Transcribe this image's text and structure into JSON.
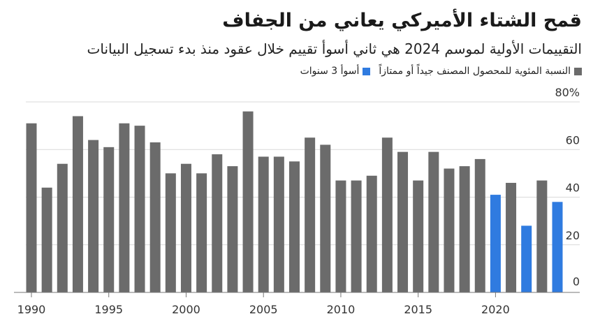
{
  "title": "قمح الشتاء الأميركي يعاني من الجفاف",
  "subtitle": "التقييمات الأولية لموسم 2024 هي ثاني أسوأ تقييم خلال عقود منذ بدء تسجيل البيانات",
  "legend": [
    {
      "label": "النسبة المئوية للمحصول المصنف جيداً أو ممتازاً",
      "color": "#6b6b6b"
    },
    {
      "label": "أسوأ 3 سنوات",
      "color": "#2f7be0"
    }
  ],
  "chart_data": {
    "type": "bar",
    "title": "",
    "xlabel": "",
    "ylabel": "",
    "unit": "%",
    "x": [
      1990,
      1991,
      1992,
      1993,
      1994,
      1995,
      1996,
      1997,
      1998,
      1999,
      2000,
      2001,
      2002,
      2003,
      2004,
      2005,
      2006,
      2007,
      2008,
      2009,
      2010,
      2011,
      2012,
      2013,
      2014,
      2015,
      2016,
      2017,
      2018,
      2019,
      2020,
      2021,
      2022,
      2023,
      2024
    ],
    "values": [
      71,
      44,
      54,
      74,
      64,
      61,
      71,
      70,
      63,
      50,
      54,
      50,
      58,
      53,
      76,
      57,
      57,
      55,
      65,
      62,
      47,
      47,
      49,
      65,
      59,
      47,
      59,
      52,
      53,
      56,
      41,
      46,
      28,
      47,
      38
    ],
    "highlight": [
      2020,
      2022,
      2024
    ],
    "colors": {
      "normal": "#6b6b6b",
      "highlight": "#2f7be0"
    },
    "ylim": [
      0,
      80
    ],
    "yticks": [
      0,
      20,
      40,
      60,
      80
    ],
    "ytick_labels": [
      "0",
      "20",
      "40",
      "60",
      "80%"
    ],
    "xticks": [
      1990,
      1995,
      2000,
      2005,
      2010,
      2015,
      2020
    ],
    "xtick_labels": [
      "1990",
      "1995",
      "2000",
      "2005",
      "2010",
      "2015",
      "2020"
    ],
    "grid": true
  }
}
